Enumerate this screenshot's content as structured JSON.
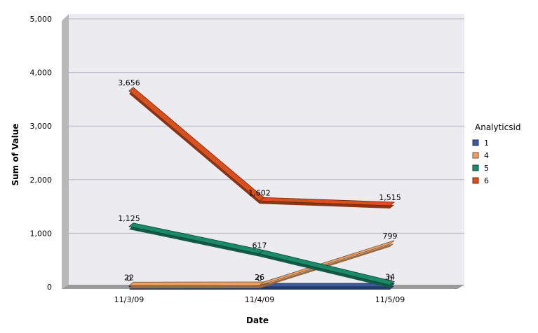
{
  "chart_data": {
    "type": "line",
    "style": "3d",
    "xlabel": "Date",
    "ylabel": "Sum of Value",
    "categories": [
      "11/3/09",
      "11/4/09",
      "11/5/09"
    ],
    "ylim": [
      0,
      5000
    ],
    "yticks": [
      0,
      1000,
      2000,
      3000,
      4000,
      5000
    ],
    "ytick_labels": [
      "0",
      "1,000",
      "2,000",
      "3,000",
      "4,000",
      "5,000"
    ],
    "grid": true,
    "legend_title": "Analyticsid",
    "legend_position": "right",
    "series": [
      {
        "name": "1",
        "values": [
          0,
          0,
          0
        ],
        "labels": [
          "0",
          "0",
          "0"
        ],
        "color": "#3a5a9c"
      },
      {
        "name": "4",
        "values": [
          22,
          26,
          799
        ],
        "labels": [
          "22",
          "26",
          "799"
        ],
        "color": "#f0a060"
      },
      {
        "name": "5",
        "values": [
          1125,
          617,
          34
        ],
        "labels": [
          "1,125",
          "617",
          "34"
        ],
        "color": "#1a8a6a"
      },
      {
        "name": "6",
        "values": [
          3656,
          1602,
          1515
        ],
        "labels": [
          "3,656",
          "1,602",
          "1,515"
        ],
        "color": "#d8501e"
      }
    ]
  }
}
